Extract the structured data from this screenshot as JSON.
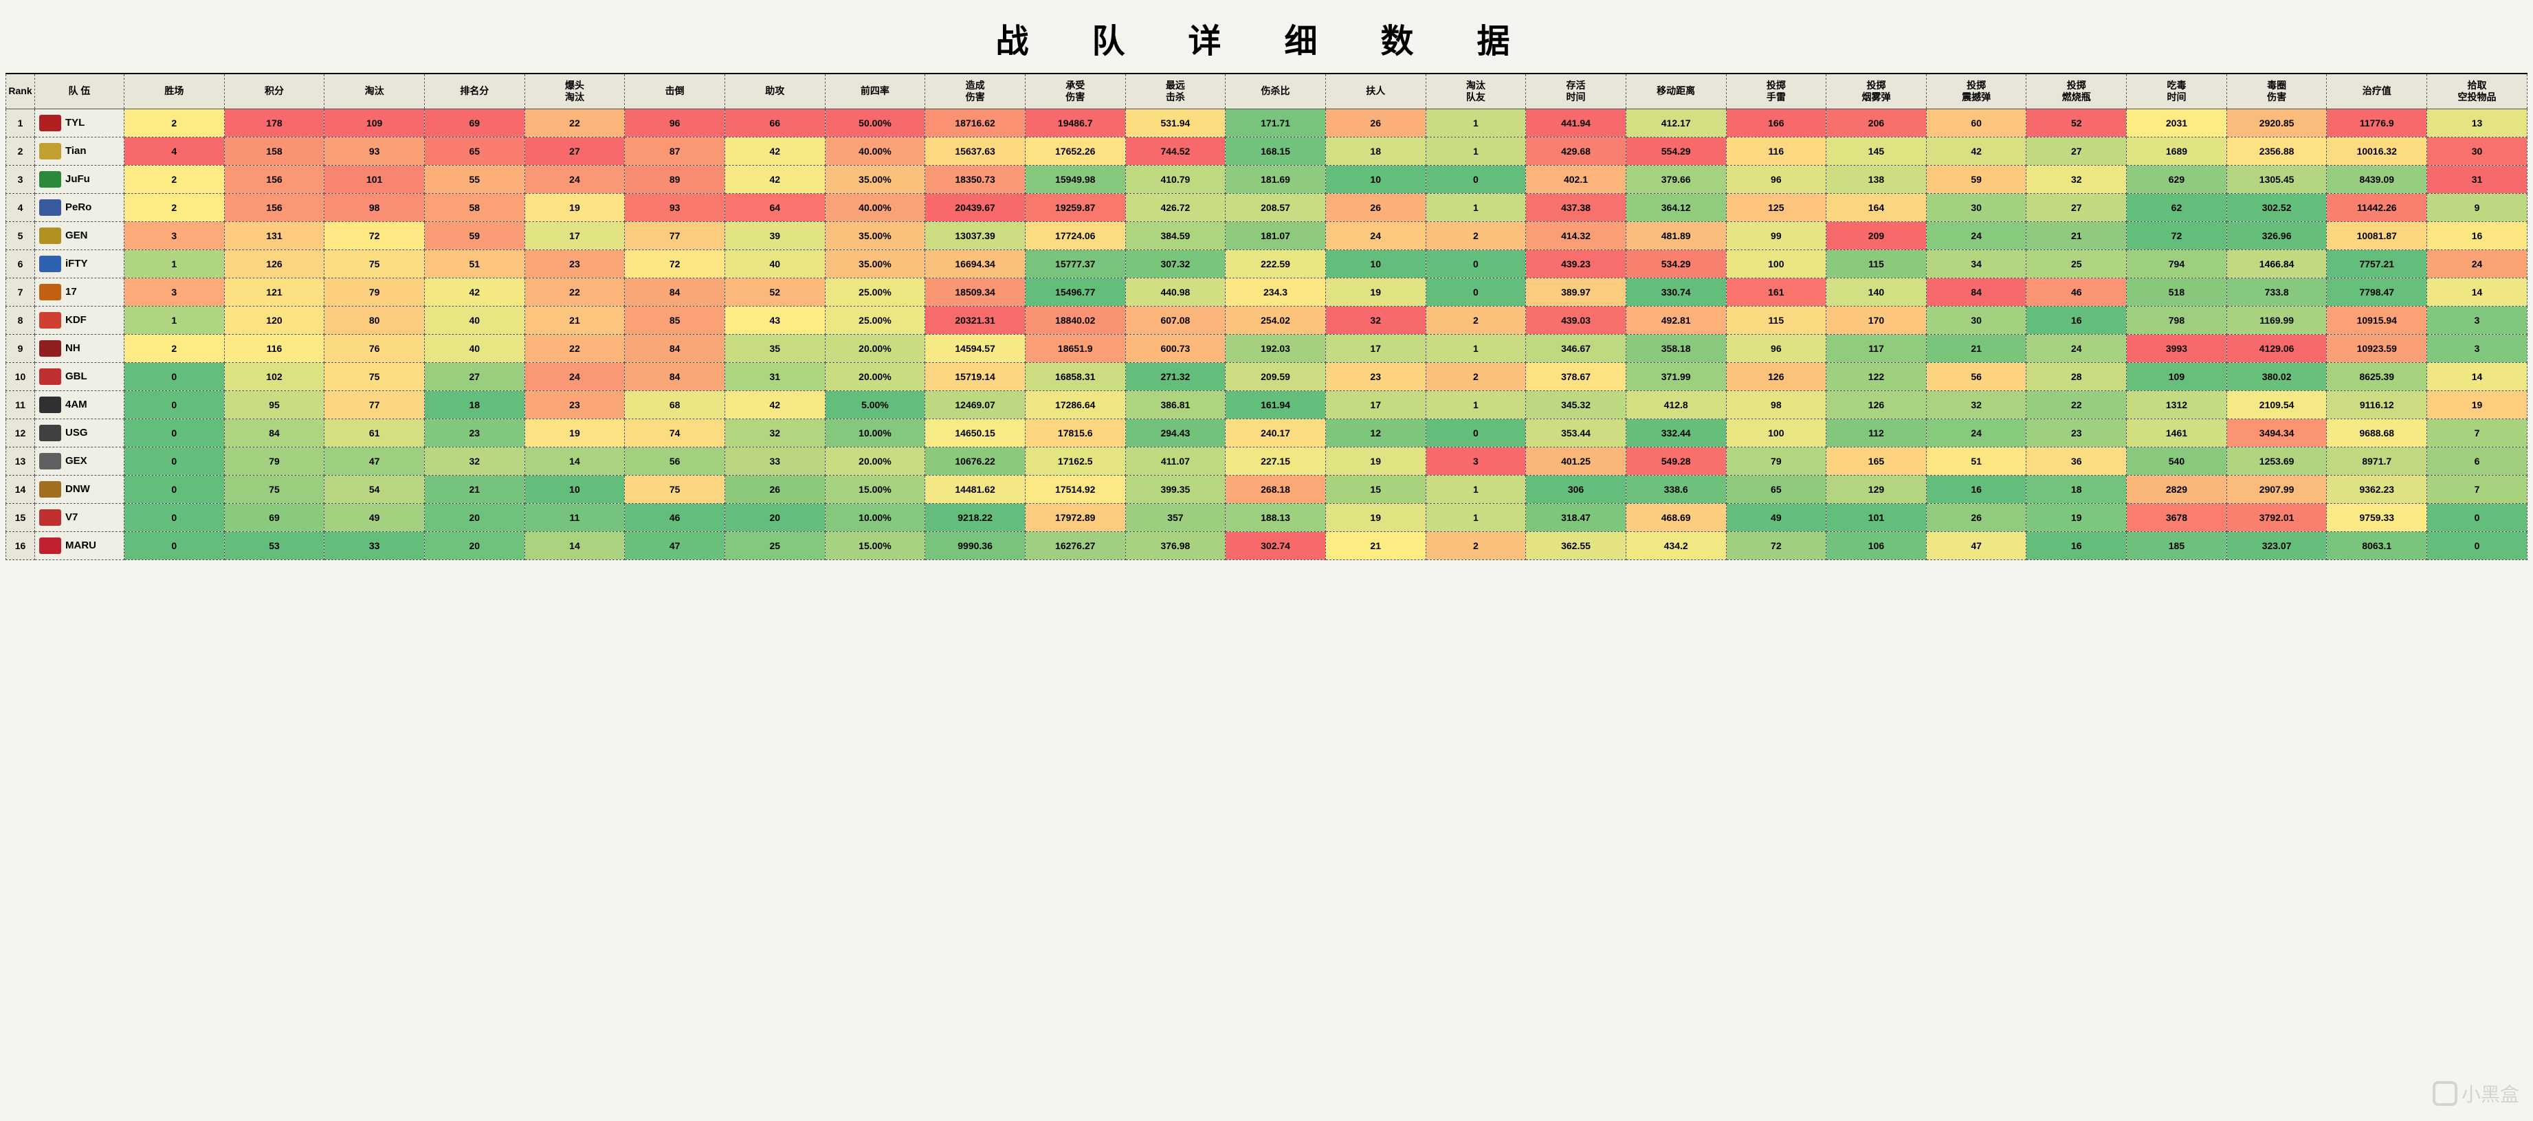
{
  "title": "战 队 详 细 数 据",
  "watermark_text": "小黑盒",
  "columns": [
    {
      "key": "rank",
      "label": "Rank"
    },
    {
      "key": "team",
      "label": "队 伍"
    },
    {
      "key": "wins",
      "label": "胜场"
    },
    {
      "key": "points",
      "label": "积分"
    },
    {
      "key": "elims",
      "label": "淘汰"
    },
    {
      "key": "rankpts",
      "label": "排名分"
    },
    {
      "key": "headshot",
      "label": "爆头\n淘汰"
    },
    {
      "key": "knock",
      "label": "击倒"
    },
    {
      "key": "assist",
      "label": "助攻"
    },
    {
      "key": "top4",
      "label": "前四率"
    },
    {
      "key": "dmg_deal",
      "label": "造成\n伤害"
    },
    {
      "key": "dmg_take",
      "label": "承受\n伤害"
    },
    {
      "key": "longest",
      "label": "最远\n击杀"
    },
    {
      "key": "kd",
      "label": "伤杀比"
    },
    {
      "key": "revive",
      "label": "扶人"
    },
    {
      "key": "tk",
      "label": "淘汰\n队友"
    },
    {
      "key": "survive",
      "label": "存活\n时间"
    },
    {
      "key": "dist",
      "label": "移动距离"
    },
    {
      "key": "frag",
      "label": "投掷\n手雷"
    },
    {
      "key": "smoke",
      "label": "投掷\n烟雾弹"
    },
    {
      "key": "stun",
      "label": "投掷\n震撼弹"
    },
    {
      "key": "molotov",
      "label": "投掷\n燃烧瓶"
    },
    {
      "key": "poison",
      "label": "吃毒\n时间"
    },
    {
      "key": "zone_dmg",
      "label": "毒圈\n伤害"
    },
    {
      "key": "heal",
      "label": "治疗值"
    },
    {
      "key": "airdrop",
      "label": "拾取\n空投物品"
    }
  ],
  "color_scale": {
    "min": "#63be7b",
    "mid": "#fdeb84",
    "max": "#f8696b"
  },
  "team_logo_colors": {
    "TYL": "#b02020",
    "Tian": "#c0a030",
    "JuFu": "#2a8a3a",
    "PeRo": "#3a5aa0",
    "GEN": "#b09020",
    "iFTY": "#3060b0",
    "17": "#c06010",
    "KDF": "#d04030",
    "NH": "#902020",
    "GBL": "#c03030",
    "4AM": "#303030",
    "USG": "#404040",
    "GEX": "#606060",
    "DNW": "#a07020",
    "V7": "#c03030",
    "MARU": "#c02030"
  },
  "rows": [
    {
      "rank": 1,
      "team": "TYL",
      "wins": 2,
      "points": 178,
      "elims": 109,
      "rankpts": 69,
      "headshot": 22,
      "knock": 96,
      "assist": 66,
      "top4": "50.00%",
      "dmg_deal": 18716.62,
      "dmg_take": 19486.7,
      "longest": 531.94,
      "kd": 171.71,
      "revive": 26,
      "tk": 1,
      "survive": 441.94,
      "dist": 412.17,
      "frag": 166,
      "smoke": 206,
      "stun": 60,
      "molotov": 52,
      "poison": 2031,
      "zone_dmg": 2920.85,
      "heal": 11776.9,
      "airdrop": 13
    },
    {
      "rank": 2,
      "team": "Tian",
      "wins": 4,
      "points": 158,
      "elims": 93,
      "rankpts": 65,
      "headshot": 27,
      "knock": 87,
      "assist": 42,
      "top4": "40.00%",
      "dmg_deal": 15637.63,
      "dmg_take": 17652.26,
      "longest": 744.52,
      "kd": 168.15,
      "revive": 18,
      "tk": 1,
      "survive": 429.68,
      "dist": 554.29,
      "frag": 116,
      "smoke": 145,
      "stun": 42,
      "molotov": 27,
      "poison": 1689,
      "zone_dmg": 2356.88,
      "heal": 10016.32,
      "airdrop": 30
    },
    {
      "rank": 3,
      "team": "JuFu",
      "wins": 2,
      "points": 156,
      "elims": 101,
      "rankpts": 55,
      "headshot": 24,
      "knock": 89,
      "assist": 42,
      "top4": "35.00%",
      "dmg_deal": 18350.73,
      "dmg_take": 15949.98,
      "longest": 410.79,
      "kd": 181.69,
      "revive": 10,
      "tk": 0,
      "survive": 402.1,
      "dist": 379.66,
      "frag": 96,
      "smoke": 138,
      "stun": 59,
      "molotov": 32,
      "poison": 629,
      "zone_dmg": 1305.45,
      "heal": 8439.09,
      "airdrop": 31
    },
    {
      "rank": 4,
      "team": "PeRo",
      "wins": 2,
      "points": 156,
      "elims": 98,
      "rankpts": 58,
      "headshot": 19,
      "knock": 93,
      "assist": 64,
      "top4": "40.00%",
      "dmg_deal": 20439.67,
      "dmg_take": 19259.87,
      "longest": 426.72,
      "kd": 208.57,
      "revive": 26,
      "tk": 1,
      "survive": 437.38,
      "dist": 364.12,
      "frag": 125,
      "smoke": 164,
      "stun": 30,
      "molotov": 27,
      "poison": 62,
      "zone_dmg": 302.52,
      "heal": 11442.26,
      "airdrop": 9
    },
    {
      "rank": 5,
      "team": "GEN",
      "wins": 3,
      "points": 131,
      "elims": 72,
      "rankpts": 59,
      "headshot": 17,
      "knock": 77,
      "assist": 39,
      "top4": "35.00%",
      "dmg_deal": 13037.39,
      "dmg_take": 17724.06,
      "longest": 384.59,
      "kd": 181.07,
      "revive": 24,
      "tk": 2,
      "survive": 414.32,
      "dist": 481.89,
      "frag": 99,
      "smoke": 209,
      "stun": 24,
      "molotov": 21,
      "poison": 72,
      "zone_dmg": 326.96,
      "heal": 10081.87,
      "airdrop": 16
    },
    {
      "rank": 6,
      "team": "iFTY",
      "wins": 1,
      "points": 126,
      "elims": 75,
      "rankpts": 51,
      "headshot": 23,
      "knock": 72,
      "assist": 40,
      "top4": "35.00%",
      "dmg_deal": 16694.34,
      "dmg_take": 15777.37,
      "longest": 307.32,
      "kd": 222.59,
      "revive": 10,
      "tk": 0,
      "survive": 439.23,
      "dist": 534.29,
      "frag": 100,
      "smoke": 115,
      "stun": 34,
      "molotov": 25,
      "poison": 794,
      "zone_dmg": 1466.84,
      "heal": 7757.21,
      "airdrop": 24
    },
    {
      "rank": 7,
      "team": "17",
      "wins": 3,
      "points": 121,
      "elims": 79,
      "rankpts": 42,
      "headshot": 22,
      "knock": 84,
      "assist": 52,
      "top4": "25.00%",
      "dmg_deal": 18509.34,
      "dmg_take": 15496.77,
      "longest": 440.98,
      "kd": 234.3,
      "revive": 19,
      "tk": 0,
      "survive": 389.97,
      "dist": 330.74,
      "frag": 161,
      "smoke": 140,
      "stun": 84,
      "molotov": 46,
      "poison": 518,
      "zone_dmg": 733.8,
      "heal": 7798.47,
      "airdrop": 14
    },
    {
      "rank": 8,
      "team": "KDF",
      "wins": 1,
      "points": 120,
      "elims": 80,
      "rankpts": 40,
      "headshot": 21,
      "knock": 85,
      "assist": 43,
      "top4": "25.00%",
      "dmg_deal": 20321.31,
      "dmg_take": 18840.02,
      "longest": 607.08,
      "kd": 254.02,
      "revive": 32,
      "tk": 2,
      "survive": 439.03,
      "dist": 492.81,
      "frag": 115,
      "smoke": 170,
      "stun": 30,
      "molotov": 16,
      "poison": 798,
      "zone_dmg": 1169.99,
      "heal": 10915.94,
      "airdrop": 3
    },
    {
      "rank": 9,
      "team": "NH",
      "wins": 2,
      "points": 116,
      "elims": 76,
      "rankpts": 40,
      "headshot": 22,
      "knock": 84,
      "assist": 35,
      "top4": "20.00%",
      "dmg_deal": 14594.57,
      "dmg_take": 18651.9,
      "longest": 600.73,
      "kd": 192.03,
      "revive": 17,
      "tk": 1,
      "survive": 346.67,
      "dist": 358.18,
      "frag": 96,
      "smoke": 117,
      "stun": 21,
      "molotov": 24,
      "poison": 3993,
      "zone_dmg": 4129.06,
      "heal": 10923.59,
      "airdrop": 3
    },
    {
      "rank": 10,
      "team": "GBL",
      "wins": 0,
      "points": 102,
      "elims": 75,
      "rankpts": 27,
      "headshot": 24,
      "knock": 84,
      "assist": 31,
      "top4": "20.00%",
      "dmg_deal": 15719.14,
      "dmg_take": 16858.31,
      "longest": 271.32,
      "kd": 209.59,
      "revive": 23,
      "tk": 2,
      "survive": 378.67,
      "dist": 371.99,
      "frag": 126,
      "smoke": 122,
      "stun": 56,
      "molotov": 28,
      "poison": 109,
      "zone_dmg": 380.02,
      "heal": 8625.39,
      "airdrop": 14
    },
    {
      "rank": 11,
      "team": "4AM",
      "wins": 0,
      "points": 95,
      "elims": 77,
      "rankpts": 18,
      "headshot": 23,
      "knock": 68,
      "assist": 42,
      "top4": "5.00%",
      "dmg_deal": 12469.07,
      "dmg_take": 17286.64,
      "longest": 386.81,
      "kd": 161.94,
      "revive": 17,
      "tk": 1,
      "survive": 345.32,
      "dist": 412.8,
      "frag": 98,
      "smoke": 126,
      "stun": 32,
      "molotov": 22,
      "poison": 1312,
      "zone_dmg": 2109.54,
      "heal": 9116.12,
      "airdrop": 19
    },
    {
      "rank": 12,
      "team": "USG",
      "wins": 0,
      "points": 84,
      "elims": 61,
      "rankpts": 23,
      "headshot": 19,
      "knock": 74,
      "assist": 32,
      "top4": "10.00%",
      "dmg_deal": 14650.15,
      "dmg_take": 17815.6,
      "longest": 294.43,
      "kd": 240.17,
      "revive": 12,
      "tk": 0,
      "survive": 353.44,
      "dist": 332.44,
      "frag": 100,
      "smoke": 112,
      "stun": 24,
      "molotov": 23,
      "poison": 1461,
      "zone_dmg": 3494.34,
      "heal": 9688.68,
      "airdrop": 7
    },
    {
      "rank": 13,
      "team": "GEX",
      "wins": 0,
      "points": 79,
      "elims": 47,
      "rankpts": 32,
      "headshot": 14,
      "knock": 56,
      "assist": 33,
      "top4": "20.00%",
      "dmg_deal": 10676.22,
      "dmg_take": 17162.5,
      "longest": 411.07,
      "kd": 227.15,
      "revive": 19,
      "tk": 3,
      "survive": 401.25,
      "dist": 549.28,
      "frag": 79,
      "smoke": 165,
      "stun": 51,
      "molotov": 36,
      "poison": 540,
      "zone_dmg": 1253.69,
      "heal": 8971.7,
      "airdrop": 6
    },
    {
      "rank": 14,
      "team": "DNW",
      "wins": 0,
      "points": 75,
      "elims": 54,
      "rankpts": 21,
      "headshot": 10,
      "knock": 75,
      "assist": 26,
      "top4": "15.00%",
      "dmg_deal": 14481.62,
      "dmg_take": 17514.92,
      "longest": 399.35,
      "kd": 268.18,
      "revive": 15,
      "tk": 1,
      "survive": 306.0,
      "dist": 338.6,
      "frag": 65,
      "smoke": 129,
      "stun": 16,
      "molotov": 18,
      "poison": 2829,
      "zone_dmg": 2907.99,
      "heal": 9362.23,
      "airdrop": 7
    },
    {
      "rank": 15,
      "team": "V7",
      "wins": 0,
      "points": 69,
      "elims": 49,
      "rankpts": 20,
      "headshot": 11,
      "knock": 46,
      "assist": 20,
      "top4": "10.00%",
      "dmg_deal": 9218.22,
      "dmg_take": 17972.89,
      "longest": 357.0,
      "kd": 188.13,
      "revive": 19,
      "tk": 1,
      "survive": 318.47,
      "dist": 468.69,
      "frag": 49,
      "smoke": 101,
      "stun": 26,
      "molotov": 19,
      "poison": 3678,
      "zone_dmg": 3792.01,
      "heal": 9759.33,
      "airdrop": 0
    },
    {
      "rank": 16,
      "team": "MARU",
      "wins": 0,
      "points": 53,
      "elims": 33,
      "rankpts": 20,
      "headshot": 14,
      "knock": 47,
      "assist": 25,
      "top4": "15.00%",
      "dmg_deal": 9990.36,
      "dmg_take": 16276.27,
      "longest": 376.98,
      "kd": 302.74,
      "revive": 21,
      "tk": 2,
      "survive": 362.55,
      "dist": 434.2,
      "frag": 72,
      "smoke": 106,
      "stun": 47,
      "molotov": 16,
      "poison": 185,
      "zone_dmg": 323.07,
      "heal": 8063.1,
      "airdrop": 0
    }
  ],
  "heatmap_columns": [
    "wins",
    "points",
    "elims",
    "rankpts",
    "headshot",
    "knock",
    "assist",
    "top4",
    "dmg_deal",
    "dmg_take",
    "longest",
    "kd",
    "revive",
    "tk",
    "survive",
    "dist",
    "frag",
    "smoke",
    "stun",
    "molotov",
    "poison",
    "zone_dmg",
    "heal",
    "airdrop"
  ]
}
